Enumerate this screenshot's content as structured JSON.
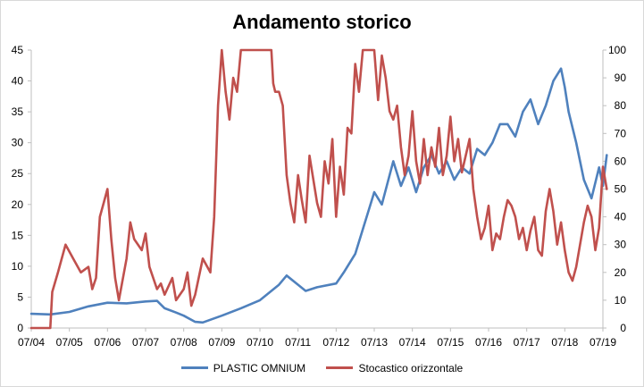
{
  "chart_data": {
    "type": "line",
    "title": "Andamento storico",
    "xlabel": "",
    "ylabel": "",
    "x_ticks": [
      "07/04",
      "07/05",
      "07/06",
      "07/07",
      "07/08",
      "07/09",
      "07/10",
      "07/11",
      "07/12",
      "07/13",
      "07/14",
      "07/15",
      "07/16",
      "07/17",
      "07/18",
      "07/19"
    ],
    "y_left": {
      "min": 0,
      "max": 45,
      "ticks": [
        "0",
        "5",
        "10",
        "15",
        "20",
        "25",
        "30",
        "35",
        "40",
        "45"
      ]
    },
    "y_right": {
      "min": 0,
      "max": 100,
      "ticks": [
        "0",
        "10",
        "20",
        "30",
        "40",
        "50",
        "60",
        "70",
        "80",
        "90",
        "100"
      ]
    },
    "grid": false,
    "legend_position": "bottom",
    "series": [
      {
        "name": "PLASTIC OMNIUM",
        "axis": "left",
        "color": "#4F81BD",
        "x": [
          2004.5,
          2005.0,
          2005.5,
          2006.0,
          2006.5,
          2007.0,
          2007.5,
          2007.8,
          2008.0,
          2008.3,
          2008.5,
          2008.8,
          2009.0,
          2009.5,
          2010.0,
          2010.5,
          2010.8,
          2011.0,
          2011.2,
          2011.5,
          2011.7,
          2012.0,
          2012.5,
          2012.7,
          2013.0,
          2013.3,
          2013.5,
          2013.7,
          2014.0,
          2014.2,
          2014.4,
          2014.6,
          2014.8,
          2015.0,
          2015.2,
          2015.4,
          2015.6,
          2015.8,
          2016.0,
          2016.2,
          2016.4,
          2016.6,
          2016.8,
          2017.0,
          2017.2,
          2017.4,
          2017.6,
          2017.8,
          2018.0,
          2018.2,
          2018.4,
          2018.5,
          2018.6,
          2018.8,
          2019.0,
          2019.2,
          2019.4,
          2019.5,
          2019.6
        ],
        "y": [
          2.3,
          2.2,
          2.6,
          3.5,
          4.1,
          4.0,
          4.3,
          4.4,
          3.2,
          2.5,
          2.0,
          1.0,
          0.9,
          2.0,
          3.2,
          4.5,
          6.0,
          7.0,
          8.5,
          7.0,
          6.0,
          6.6,
          7.2,
          9.0,
          12.0,
          18.0,
          22.0,
          20.0,
          27.0,
          23.0,
          26.0,
          22.0,
          26.0,
          28.0,
          25.0,
          27.0,
          24.0,
          26.0,
          25.0,
          29.0,
          28.0,
          30.0,
          33.0,
          33.0,
          31.0,
          35.0,
          37.0,
          33.0,
          36.0,
          40.0,
          42.0,
          39.0,
          35.0,
          30.0,
          24.0,
          21.0,
          26.0,
          23.0,
          28.0
        ]
      },
      {
        "name": "Stocastico orizzontale",
        "axis": "right",
        "color": "#C0504D",
        "x": [
          2004.5,
          2004.9,
          2005.0,
          2005.05,
          2005.2,
          2005.4,
          2005.6,
          2005.8,
          2006.0,
          2006.1,
          2006.2,
          2006.3,
          2006.4,
          2006.5,
          2006.6,
          2006.7,
          2006.8,
          2007.0,
          2007.1,
          2007.2,
          2007.3,
          2007.4,
          2007.5,
          2007.6,
          2007.8,
          2007.9,
          2008.0,
          2008.2,
          2008.3,
          2008.5,
          2008.6,
          2008.7,
          2008.8,
          2009.0,
          2009.2,
          2009.3,
          2009.4,
          2009.5,
          2009.6,
          2009.7,
          2009.8,
          2009.9,
          2010.0,
          2010.5,
          2010.8,
          2010.85,
          2010.9,
          2011.0,
          2011.1,
          2011.2,
          2011.3,
          2011.4,
          2011.5,
          2011.6,
          2011.7,
          2011.8,
          2012.0,
          2012.1,
          2012.2,
          2012.3,
          2012.4,
          2012.5,
          2012.6,
          2012.7,
          2012.8,
          2012.9,
          2013.0,
          2013.1,
          2013.2,
          2013.3,
          2013.5,
          2013.6,
          2013.7,
          2013.8,
          2013.9,
          2014.0,
          2014.1,
          2014.2,
          2014.3,
          2014.4,
          2014.5,
          2014.6,
          2014.7,
          2014.8,
          2014.9,
          2015.0,
          2015.1,
          2015.2,
          2015.3,
          2015.4,
          2015.5,
          2015.6,
          2015.7,
          2015.8,
          2015.9,
          2016.0,
          2016.1,
          2016.2,
          2016.3,
          2016.4,
          2016.5,
          2016.6,
          2016.7,
          2016.8,
          2016.9,
          2017.0,
          2017.1,
          2017.2,
          2017.3,
          2017.4,
          2017.5,
          2017.6,
          2017.7,
          2017.8,
          2017.9,
          2018.0,
          2018.1,
          2018.2,
          2018.3,
          2018.4,
          2018.5,
          2018.6,
          2018.7,
          2018.8,
          2018.9,
          2019.0,
          2019.1,
          2019.2,
          2019.3,
          2019.4,
          2019.5,
          2019.6
        ],
        "y": [
          0,
          0,
          0,
          13,
          20,
          30,
          25,
          20,
          22,
          14,
          18,
          40,
          45,
          50,
          32,
          18,
          10,
          25,
          38,
          32,
          30,
          28,
          34,
          22,
          14,
          16,
          12,
          18,
          10,
          14,
          20,
          8,
          12,
          25,
          20,
          40,
          80,
          100,
          85,
          75,
          90,
          85,
          100,
          100,
          100,
          88,
          85,
          85,
          80,
          55,
          45,
          38,
          55,
          46,
          38,
          62,
          45,
          40,
          60,
          52,
          68,
          40,
          58,
          48,
          72,
          70,
          95,
          85,
          100,
          100,
          100,
          82,
          98,
          90,
          78,
          75,
          80,
          65,
          55,
          62,
          78,
          60,
          52,
          68,
          55,
          65,
          58,
          72,
          55,
          62,
          76,
          60,
          68,
          56,
          62,
          68,
          50,
          40,
          32,
          36,
          44,
          28,
          34,
          32,
          40,
          46,
          44,
          40,
          32,
          36,
          28,
          35,
          40,
          28,
          26,
          42,
          50,
          42,
          30,
          38,
          28,
          20,
          17,
          22,
          30,
          38,
          44,
          40,
          28,
          36,
          58,
          50
        ]
      }
    ]
  }
}
